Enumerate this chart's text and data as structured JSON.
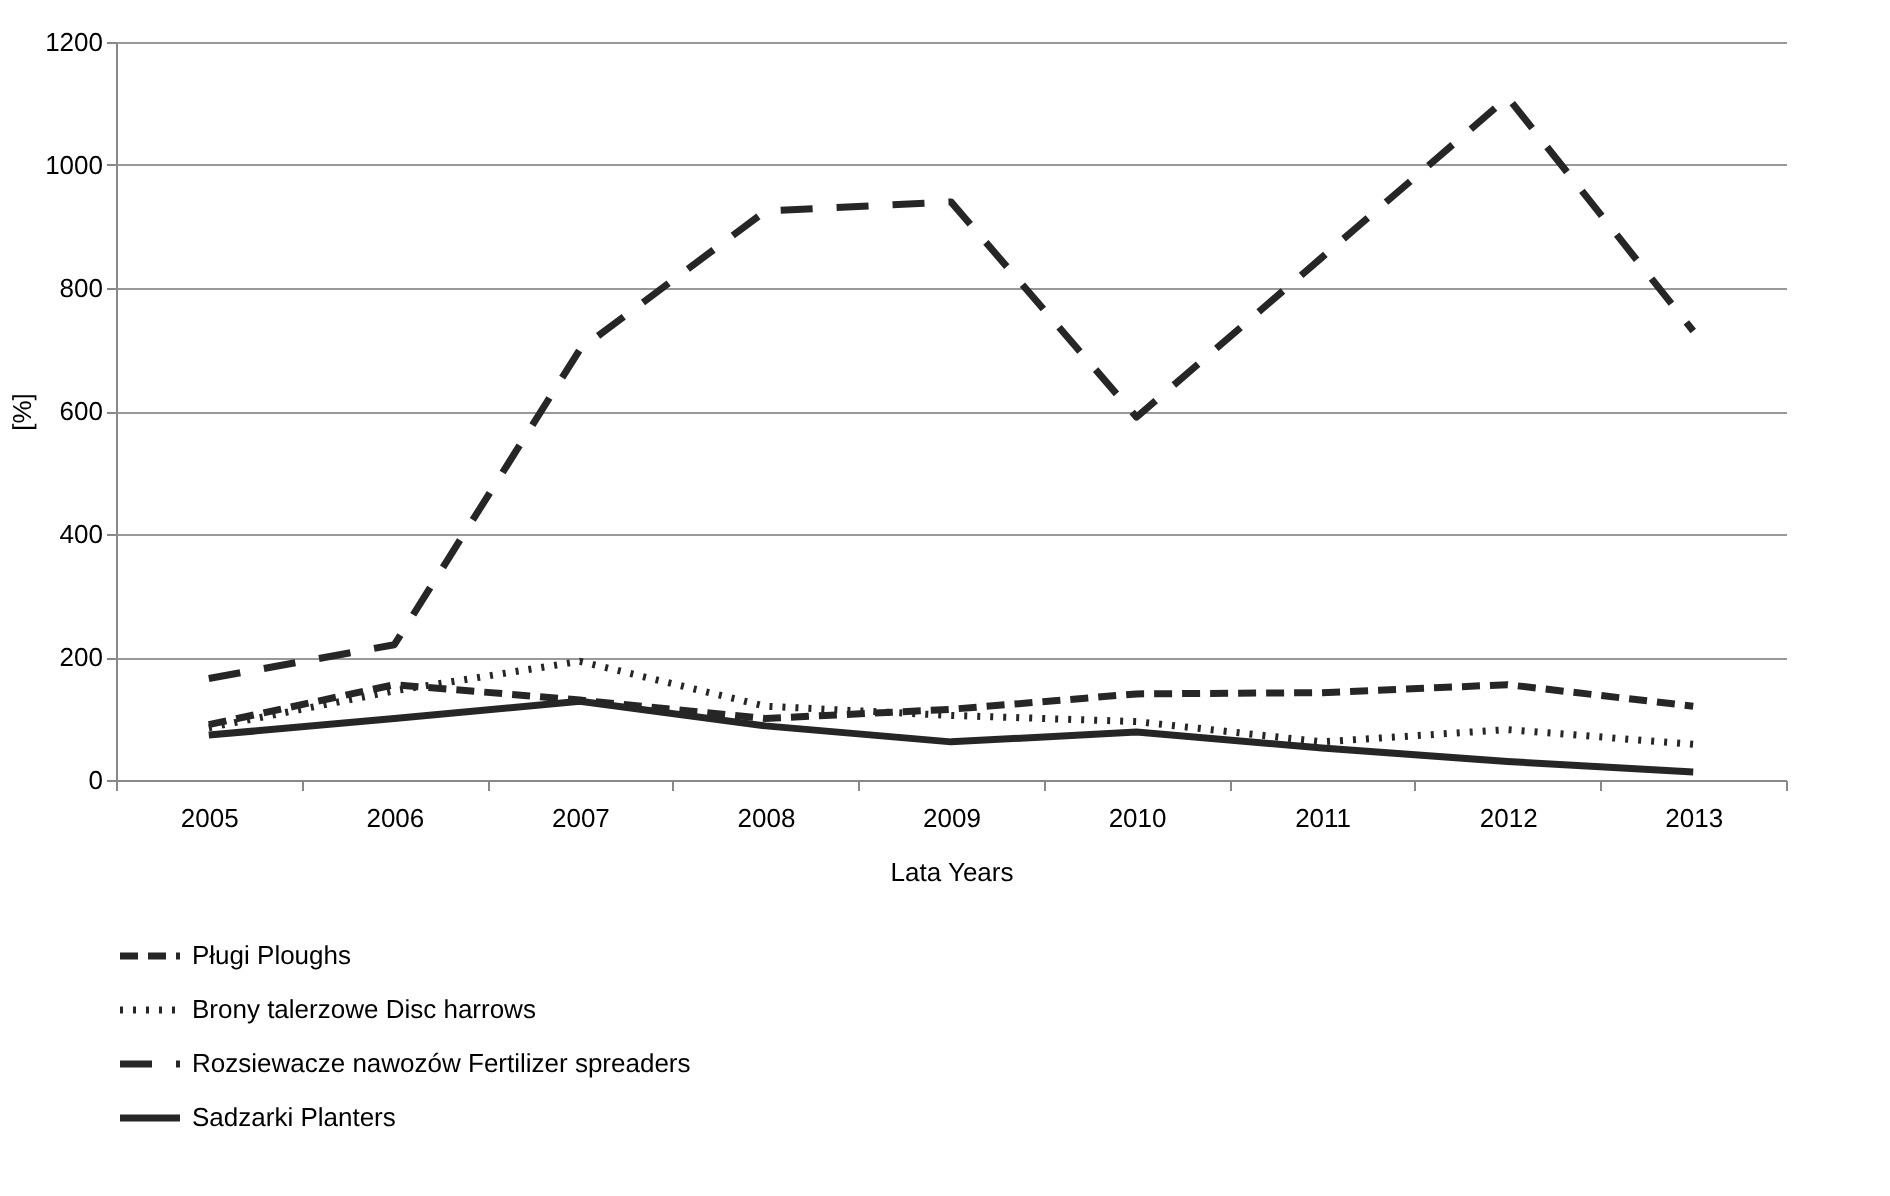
{
  "chart_data": {
    "type": "line",
    "xlabel": "Lata Years",
    "ylabel": "[%]",
    "categories": [
      "2005",
      "2006",
      "2007",
      "2008",
      "2009",
      "2010",
      "2011",
      "2012",
      "2013"
    ],
    "series": [
      {
        "name": "Pługi  Ploughs",
        "color": "#262626",
        "line_style": "dashed",
        "values": [
          90,
          155,
          130,
          100,
          115,
          140,
          142,
          155,
          120
        ]
      },
      {
        "name": "Brony talerzowe  Disc harrows",
        "color": "#262626",
        "line_style": "dotted",
        "values": [
          85,
          145,
          193,
          120,
          105,
          95,
          62,
          82,
          58
        ]
      },
      {
        "name": "Rozsiewacze nawozów  Fertilizer spreaders",
        "color": "#262626",
        "line_style": "dashed",
        "values": [
          165,
          220,
          700,
          925,
          940,
          590,
          850,
          1110,
          730
        ]
      },
      {
        "name": "Sadzarki  Planters",
        "color": "#262626",
        "line_style": "solid",
        "values": [
          73,
          100,
          128,
          88,
          62,
          78,
          52,
          30,
          13
        ]
      }
    ],
    "ylim": [
      0,
      1200
    ],
    "yticks": [
      0,
      200,
      400,
      600,
      800,
      1000,
      1200
    ],
    "grid": "y",
    "legend": "bottom"
  }
}
